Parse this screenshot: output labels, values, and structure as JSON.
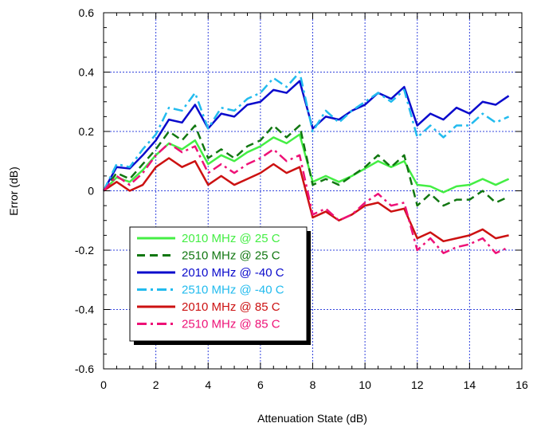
{
  "chart_data": {
    "type": "line",
    "title": "",
    "xlabel": "Attenuation State (dB)",
    "ylabel": "Error (dB)",
    "xlim": [
      0,
      16
    ],
    "ylim": [
      -0.6,
      0.6
    ],
    "xticks": [
      0,
      2,
      4,
      6,
      8,
      10,
      12,
      14,
      16
    ],
    "yticks": [
      -0.6,
      -0.4,
      -0.2,
      0,
      0.2,
      0.4,
      0.6
    ],
    "xtick_labels": [
      "0",
      "2",
      "4",
      "6",
      "8",
      "10",
      "12",
      "14",
      "16"
    ],
    "ytick_labels": [
      "-0.6",
      "-0.4",
      "-0.2",
      "0",
      "0.2",
      "0.4",
      "0.6"
    ],
    "grid": true,
    "legend_position": "lower-left",
    "x": [
      0,
      0.5,
      1,
      1.5,
      2,
      2.5,
      3,
      3.5,
      4,
      4.5,
      5,
      5.5,
      6,
      6.5,
      7,
      7.5,
      8,
      8.5,
      9,
      9.5,
      10,
      10.5,
      11,
      11.5,
      12,
      12.5,
      13,
      13.5,
      14,
      14.5,
      15,
      15.5
    ],
    "series": [
      {
        "name": "2010 MHz @ 25 C",
        "color": "#44ee44",
        "dash": "solid",
        "values": [
          0,
          0.045,
          0.03,
          0.07,
          0.12,
          0.16,
          0.14,
          0.17,
          0.09,
          0.12,
          0.1,
          0.13,
          0.15,
          0.18,
          0.16,
          0.19,
          0.03,
          0.05,
          0.03,
          0.05,
          0.075,
          0.1,
          0.08,
          0.1,
          0.02,
          0.015,
          -0.005,
          0.015,
          0.02,
          0.04,
          0.02,
          0.04
        ]
      },
      {
        "name": "2510 MHz @ 25 C",
        "color": "#117711",
        "dash": "dash",
        "values": [
          0,
          0.06,
          0.04,
          0.09,
          0.14,
          0.2,
          0.17,
          0.22,
          0.11,
          0.14,
          0.11,
          0.15,
          0.17,
          0.22,
          0.18,
          0.22,
          0.02,
          0.04,
          0.02,
          0.05,
          0.08,
          0.12,
          0.08,
          0.12,
          -0.05,
          -0.01,
          -0.05,
          -0.03,
          -0.03,
          0.0,
          -0.04,
          -0.02
        ]
      },
      {
        "name": "2010 MHz @ -40 C",
        "color": "#0a0acc",
        "dash": "solid",
        "values": [
          0,
          0.08,
          0.075,
          0.12,
          0.17,
          0.24,
          0.23,
          0.29,
          0.21,
          0.26,
          0.25,
          0.29,
          0.3,
          0.34,
          0.33,
          0.37,
          0.21,
          0.25,
          0.24,
          0.27,
          0.29,
          0.33,
          0.31,
          0.35,
          0.22,
          0.26,
          0.24,
          0.28,
          0.26,
          0.3,
          0.29,
          0.32
        ]
      },
      {
        "name": "2510 MHz @ -40 C",
        "color": "#22bbee",
        "dash": "dashdot",
        "values": [
          0,
          0.09,
          0.08,
          0.14,
          0.19,
          0.28,
          0.27,
          0.33,
          0.21,
          0.28,
          0.27,
          0.31,
          0.33,
          0.38,
          0.35,
          0.4,
          0.2,
          0.27,
          0.23,
          0.27,
          0.3,
          0.33,
          0.3,
          0.34,
          0.18,
          0.22,
          0.18,
          0.22,
          0.22,
          0.26,
          0.23,
          0.25
        ]
      },
      {
        "name": "2010 MHz @ 85 C",
        "color": "#cc1111",
        "dash": "solid",
        "values": [
          0,
          0.03,
          0.0,
          0.02,
          0.08,
          0.11,
          0.08,
          0.1,
          0.02,
          0.05,
          0.02,
          0.04,
          0.06,
          0.09,
          0.06,
          0.08,
          -0.09,
          -0.07,
          -0.1,
          -0.08,
          -0.05,
          -0.04,
          -0.07,
          -0.06,
          -0.16,
          -0.14,
          -0.17,
          -0.16,
          -0.15,
          -0.13,
          -0.16,
          -0.15
        ]
      },
      {
        "name": "2510 MHz @ 85 C",
        "color": "#ee1177",
        "dash": "dashdot",
        "values": [
          0,
          0.05,
          0.02,
          0.06,
          0.12,
          0.16,
          0.13,
          0.15,
          0.06,
          0.09,
          0.06,
          0.09,
          0.11,
          0.14,
          0.1,
          0.12,
          -0.08,
          -0.06,
          -0.1,
          -0.08,
          -0.04,
          -0.01,
          -0.05,
          -0.04,
          -0.2,
          -0.16,
          -0.21,
          -0.19,
          -0.18,
          -0.16,
          -0.21,
          -0.19
        ]
      }
    ]
  }
}
